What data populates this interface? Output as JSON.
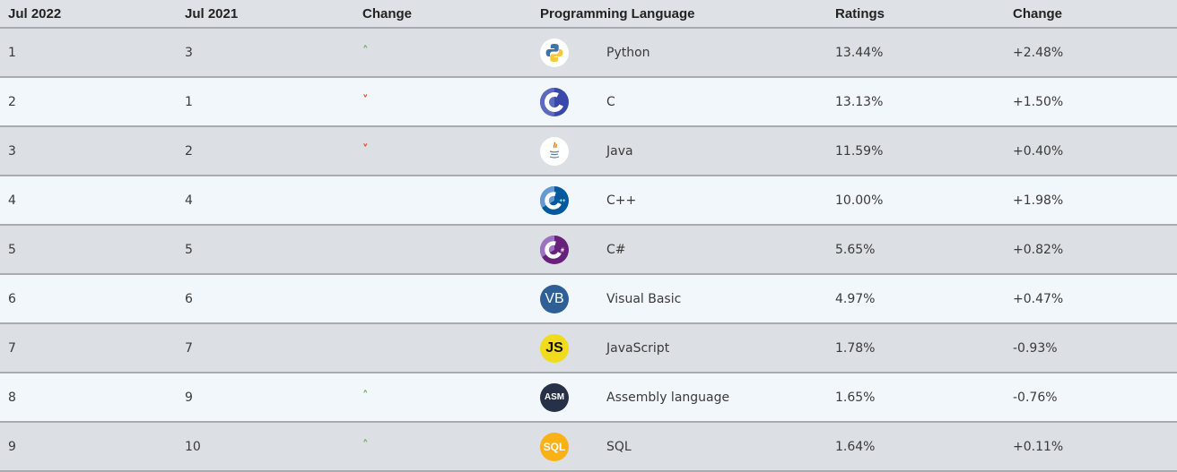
{
  "header": {
    "col1": "Jul 2022",
    "col2": "Jul 2021",
    "col3": "Change",
    "col4": "Programming Language",
    "col5": "Ratings",
    "col6": "Change"
  },
  "colors": {
    "up": "#6ab04c",
    "down": "#e0401a",
    "header_bg": "#dee2e6",
    "row_odd": "#dcdfe3",
    "row_even": "#f2f7fb"
  },
  "rows": [
    {
      "rank_2022": "1",
      "rank_2021": "3",
      "trend": "up",
      "language": "Python",
      "icon": "python-logo-icon",
      "ratings": "13.44%",
      "change": "+2.48%"
    },
    {
      "rank_2022": "2",
      "rank_2021": "1",
      "trend": "down",
      "language": "C",
      "icon": "c-logo-icon",
      "ratings": "13.13%",
      "change": "+1.50%"
    },
    {
      "rank_2022": "3",
      "rank_2021": "2",
      "trend": "down",
      "language": "Java",
      "icon": "java-logo-icon",
      "ratings": "11.59%",
      "change": "+0.40%"
    },
    {
      "rank_2022": "4",
      "rank_2021": "4",
      "trend": "none",
      "language": "C++",
      "icon": "cpp-logo-icon",
      "ratings": "10.00%",
      "change": "+1.98%"
    },
    {
      "rank_2022": "5",
      "rank_2021": "5",
      "trend": "none",
      "language": "C#",
      "icon": "csharp-logo-icon",
      "ratings": "5.65%",
      "change": "+0.82%"
    },
    {
      "rank_2022": "6",
      "rank_2021": "6",
      "trend": "none",
      "language": "Visual Basic",
      "icon": "visual-basic-logo-icon",
      "icon_text": "VB",
      "ratings": "4.97%",
      "change": "+0.47%"
    },
    {
      "rank_2022": "7",
      "rank_2021": "7",
      "trend": "none",
      "language": "JavaScript",
      "icon": "javascript-logo-icon",
      "icon_text": "JS",
      "ratings": "1.78%",
      "change": "-0.93%"
    },
    {
      "rank_2022": "8",
      "rank_2021": "9",
      "trend": "up",
      "language": "Assembly language",
      "icon": "assembly-logo-icon",
      "icon_text": "ASM",
      "ratings": "1.65%",
      "change": "-0.76%"
    },
    {
      "rank_2022": "9",
      "rank_2021": "10",
      "trend": "up",
      "language": "SQL",
      "icon": "sql-logo-icon",
      "icon_text": "SQL",
      "ratings": "1.64%",
      "change": "+0.11%"
    }
  ]
}
